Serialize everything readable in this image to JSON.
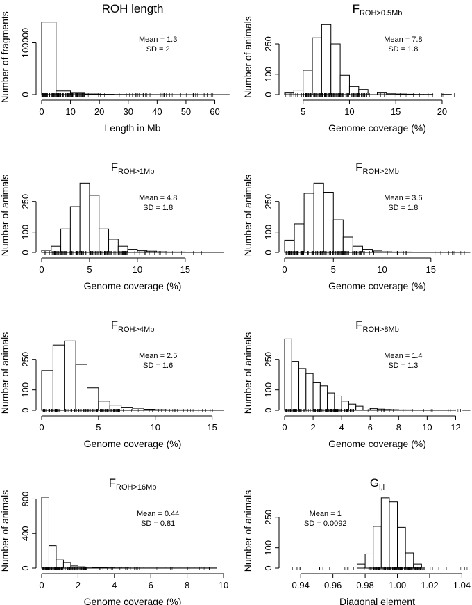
{
  "figure": {
    "type": "histogram-grid",
    "rows": 4,
    "cols": 2
  },
  "chart_data": [
    {
      "type": "bar",
      "title_main": "ROH length",
      "title_sub": "",
      "xlabel": "Length in Mb",
      "ylabel": "Number of fragments",
      "bin_start": 0,
      "bin_width": 5,
      "values": [
        140000,
        7000,
        2800,
        1200,
        600,
        300,
        150,
        80,
        40,
        20,
        10,
        5,
        3
      ],
      "xlim": [
        0,
        63
      ],
      "ylim": [
        0,
        145000
      ],
      "xticks": [
        0,
        10,
        20,
        30,
        40,
        50,
        60
      ],
      "yticks": [
        0,
        100000
      ],
      "mean_label": "Mean = 1.3",
      "sd_label": "SD = 2",
      "rug": {
        "dense": [
          0,
          15
        ],
        "sparse": [
          15,
          60
        ]
      }
    },
    {
      "type": "bar",
      "title_main": "F",
      "title_sub": "ROH>0.5Mb",
      "xlabel": "Genome coverage (%)",
      "ylabel": "Number of animals",
      "bin_start": 3,
      "bin_width": 1,
      "values": [
        8,
        22,
        120,
        280,
        345,
        250,
        95,
        40,
        25,
        12,
        8,
        4,
        3,
        2,
        1,
        1,
        0,
        1,
        0
      ],
      "xlim": [
        3,
        23
      ],
      "ylim": [
        0,
        370
      ],
      "xticks": [
        5,
        10,
        15,
        20
      ],
      "yticks": [
        0,
        100,
        250
      ],
      "mean_label": "Mean = 7.8",
      "sd_label": "SD = 1.8",
      "rug": {
        "dense": [
          5,
          12
        ],
        "sparse": [
          3,
          22
        ]
      }
    },
    {
      "type": "bar",
      "title_main": "F",
      "title_sub": "ROH>1Mb",
      "xlabel": "Genome coverage (%)",
      "ylabel": "Number of animals",
      "bin_start": 0,
      "bin_width": 1,
      "values": [
        10,
        30,
        115,
        225,
        340,
        280,
        115,
        65,
        30,
        15,
        8,
        6,
        3,
        2,
        2,
        1,
        1,
        1,
        1
      ],
      "xlim": [
        0,
        19
      ],
      "ylim": [
        0,
        365
      ],
      "xticks": [
        0,
        5,
        10,
        15
      ],
      "yticks": [
        0,
        100,
        250
      ],
      "mean_label": "Mean = 4.8",
      "sd_label": "SD = 1.8",
      "rug": {
        "dense": [
          1,
          9
        ],
        "sparse": [
          0,
          18.5
        ]
      }
    },
    {
      "type": "bar",
      "title_main": "F",
      "title_sub": "ROH>2Mb",
      "xlabel": "Genome coverage (%)",
      "ylabel": "Number of animals",
      "bin_start": 0,
      "bin_width": 1,
      "values": [
        60,
        140,
        290,
        340,
        295,
        160,
        75,
        30,
        15,
        7,
        3,
        2,
        2,
        1,
        1,
        1,
        1,
        1,
        1
      ],
      "xlim": [
        0,
        19
      ],
      "ylim": [
        0,
        365
      ],
      "xticks": [
        0,
        5,
        10,
        15
      ],
      "yticks": [
        0,
        100,
        250
      ],
      "mean_label": "Mean = 3.6",
      "sd_label": "SD = 1.8",
      "rug": {
        "dense": [
          0,
          8
        ],
        "sparse": [
          0,
          18.5
        ]
      }
    },
    {
      "type": "bar",
      "title_main": "F",
      "title_sub": "ROH>4Mb",
      "xlabel": "Genome coverage (%)",
      "ylabel": "Number of animals",
      "bin_start": 0,
      "bin_width": 1,
      "values": [
        195,
        320,
        340,
        225,
        110,
        45,
        25,
        15,
        10,
        5,
        3,
        2,
        2,
        1,
        1,
        1
      ],
      "xlim": [
        0,
        16
      ],
      "ylim": [
        0,
        365
      ],
      "xticks": [
        0,
        5,
        10,
        15
      ],
      "yticks": [
        0,
        100,
        250
      ],
      "mean_label": "Mean = 2.5",
      "sd_label": "SD = 1.6",
      "rug": {
        "dense": [
          0,
          7
        ],
        "sparse": [
          0,
          15.5
        ]
      }
    },
    {
      "type": "bar",
      "title_main": "F",
      "title_sub": "ROH>8Mb",
      "xlabel": "Genome coverage (%)",
      "ylabel": "Number of animals",
      "bin_start": 0,
      "bin_width": 0.5,
      "values": [
        350,
        240,
        205,
        180,
        135,
        120,
        85,
        70,
        45,
        30,
        20,
        12,
        8,
        6,
        4,
        3,
        2,
        2,
        1,
        1,
        1,
        1,
        1,
        1,
        0,
        1
      ],
      "xlim": [
        0,
        13
      ],
      "ylim": [
        0,
        365
      ],
      "xticks": [
        0,
        2,
        4,
        6,
        8,
        10,
        12
      ],
      "yticks": [
        0,
        100,
        250
      ],
      "mean_label": "Mean = 1.4",
      "sd_label": "SD = 1.3",
      "rug": {
        "dense": [
          0,
          5
        ],
        "sparse": [
          0,
          12.5
        ]
      }
    },
    {
      "type": "bar",
      "title_main": "F",
      "title_sub": "ROH>16Mb",
      "xlabel": "Genome coverage (%)",
      "ylabel": "Number of animals",
      "bin_start": 0,
      "bin_width": 0.4,
      "values": [
        820,
        260,
        95,
        65,
        25,
        15,
        10,
        6,
        4,
        3,
        2,
        2,
        1,
        1,
        1,
        1,
        1,
        1,
        1,
        1,
        1,
        1,
        1,
        1,
        0
      ],
      "xlim": [
        0,
        10
      ],
      "ylim": [
        0,
        860
      ],
      "xticks": [
        0,
        2,
        4,
        6,
        8,
        10
      ],
      "yticks": [
        0,
        400,
        800
      ],
      "mean_label": "Mean = 0.44",
      "sd_label": "SD = 0.81",
      "rug": {
        "dense": [
          0,
          2.5
        ],
        "sparse": [
          0,
          9.8
        ]
      }
    },
    {
      "type": "bar",
      "title_main": "G",
      "title_sub": "i,i",
      "xlabel": "Diagonal element",
      "ylabel": "Number of animals",
      "bin_start": 0.975,
      "bin_width": 0.005,
      "values": [
        20,
        70,
        205,
        345,
        325,
        200,
        75,
        20
      ],
      "xlim": [
        0.93,
        1.045
      ],
      "ylim": [
        0,
        365
      ],
      "xticks": [
        0.94,
        0.96,
        0.98,
        1.0,
        1.02,
        1.04
      ],
      "xtick_labels": [
        "0.94",
        "0.96",
        "0.98",
        "1.00",
        "1.02",
        "1.04"
      ],
      "yticks": [
        0,
        100,
        250
      ],
      "mean_label": "Mean = 1",
      "sd_label": "SD = 0.0092",
      "stats_side": "left",
      "rug": {
        "dense": [
          0.985,
          1.015
        ],
        "sparse": [
          0.935,
          1.045
        ]
      }
    }
  ]
}
